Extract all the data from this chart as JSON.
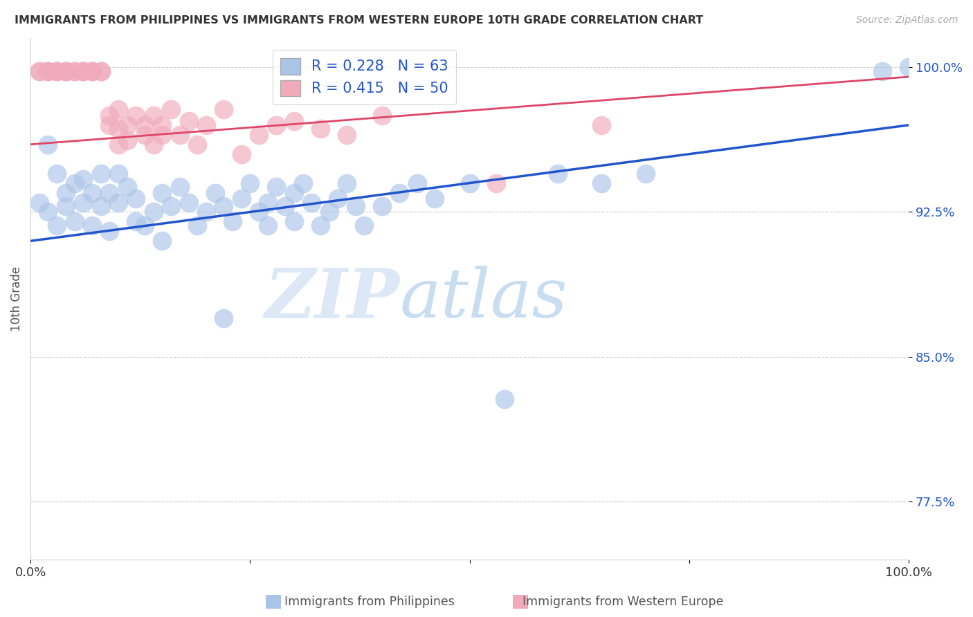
{
  "title": "IMMIGRANTS FROM PHILIPPINES VS IMMIGRANTS FROM WESTERN EUROPE 10TH GRADE CORRELATION CHART",
  "source": "Source: ZipAtlas.com",
  "ylabel": "10th Grade",
  "xlim": [
    0.0,
    1.0
  ],
  "ylim": [
    0.745,
    1.015
  ],
  "yticks": [
    0.775,
    0.85,
    0.925,
    1.0
  ],
  "ytick_labels": [
    "77.5%",
    "85.0%",
    "92.5%",
    "100.0%"
  ],
  "xticks": [
    0.0,
    0.25,
    0.5,
    0.75,
    1.0
  ],
  "xtick_labels": [
    "0.0%",
    "",
    "",
    "",
    "100.0%"
  ],
  "blue_R": 0.228,
  "blue_N": 63,
  "pink_R": 0.415,
  "pink_N": 50,
  "blue_color": "#aac4e8",
  "pink_color": "#f0aabb",
  "blue_line_color": "#2255cc",
  "pink_line_color": "#e04466",
  "legend_label_blue": "Immigrants from Philippines",
  "legend_label_pink": "Immigrants from Western Europe",
  "blue_line_x0": 0.0,
  "blue_line_y0": 0.91,
  "blue_line_x1": 1.0,
  "blue_line_y1": 0.97,
  "pink_line_x0": 0.0,
  "pink_line_y0": 0.96,
  "pink_line_x1": 1.0,
  "pink_line_y1": 0.995,
  "blue_scatter_x": [
    0.01,
    0.02,
    0.02,
    0.03,
    0.03,
    0.04,
    0.04,
    0.05,
    0.05,
    0.06,
    0.06,
    0.07,
    0.07,
    0.08,
    0.08,
    0.09,
    0.09,
    0.1,
    0.1,
    0.11,
    0.12,
    0.12,
    0.13,
    0.14,
    0.15,
    0.15,
    0.16,
    0.17,
    0.18,
    0.19,
    0.2,
    0.21,
    0.22,
    0.23,
    0.24,
    0.25,
    0.26,
    0.27,
    0.27,
    0.28,
    0.29,
    0.3,
    0.3,
    0.31,
    0.32,
    0.33,
    0.34,
    0.35,
    0.36,
    0.37,
    0.22,
    0.38,
    0.4,
    0.42,
    0.44,
    0.46,
    0.5,
    0.54,
    0.6,
    0.65,
    0.7,
    0.97,
    1.0
  ],
  "blue_scatter_y": [
    0.93,
    0.96,
    0.925,
    0.918,
    0.945,
    0.935,
    0.928,
    0.94,
    0.92,
    0.93,
    0.942,
    0.935,
    0.918,
    0.928,
    0.945,
    0.915,
    0.935,
    0.93,
    0.945,
    0.938,
    0.92,
    0.932,
    0.918,
    0.925,
    0.935,
    0.91,
    0.928,
    0.938,
    0.93,
    0.918,
    0.925,
    0.935,
    0.928,
    0.92,
    0.932,
    0.94,
    0.925,
    0.93,
    0.918,
    0.938,
    0.928,
    0.92,
    0.935,
    0.94,
    0.93,
    0.918,
    0.925,
    0.932,
    0.94,
    0.928,
    0.87,
    0.918,
    0.928,
    0.935,
    0.94,
    0.932,
    0.94,
    0.828,
    0.945,
    0.94,
    0.945,
    0.998,
    1.0
  ],
  "pink_scatter_x": [
    0.01,
    0.01,
    0.02,
    0.02,
    0.02,
    0.03,
    0.03,
    0.03,
    0.04,
    0.04,
    0.04,
    0.05,
    0.05,
    0.06,
    0.06,
    0.06,
    0.07,
    0.07,
    0.07,
    0.08,
    0.08,
    0.09,
    0.09,
    0.1,
    0.1,
    0.1,
    0.11,
    0.11,
    0.12,
    0.13,
    0.13,
    0.14,
    0.14,
    0.15,
    0.15,
    0.16,
    0.17,
    0.18,
    0.19,
    0.2,
    0.22,
    0.24,
    0.26,
    0.28,
    0.3,
    0.33,
    0.36,
    0.4,
    0.53,
    0.65
  ],
  "pink_scatter_y": [
    0.998,
    0.998,
    0.998,
    0.998,
    0.998,
    0.998,
    0.998,
    0.998,
    0.998,
    0.998,
    0.998,
    0.998,
    0.998,
    0.998,
    0.998,
    0.998,
    0.998,
    0.998,
    0.998,
    0.998,
    0.998,
    0.97,
    0.975,
    0.96,
    0.968,
    0.978,
    0.962,
    0.97,
    0.975,
    0.965,
    0.97,
    0.96,
    0.975,
    0.965,
    0.97,
    0.978,
    0.965,
    0.972,
    0.96,
    0.97,
    0.978,
    0.955,
    0.965,
    0.97,
    0.972,
    0.968,
    0.965,
    0.975,
    0.94,
    0.97
  ],
  "watermark_zip": "ZIP",
  "watermark_atlas": "atlas",
  "bg_color": "#ffffff",
  "grid_color": "#cccccc"
}
